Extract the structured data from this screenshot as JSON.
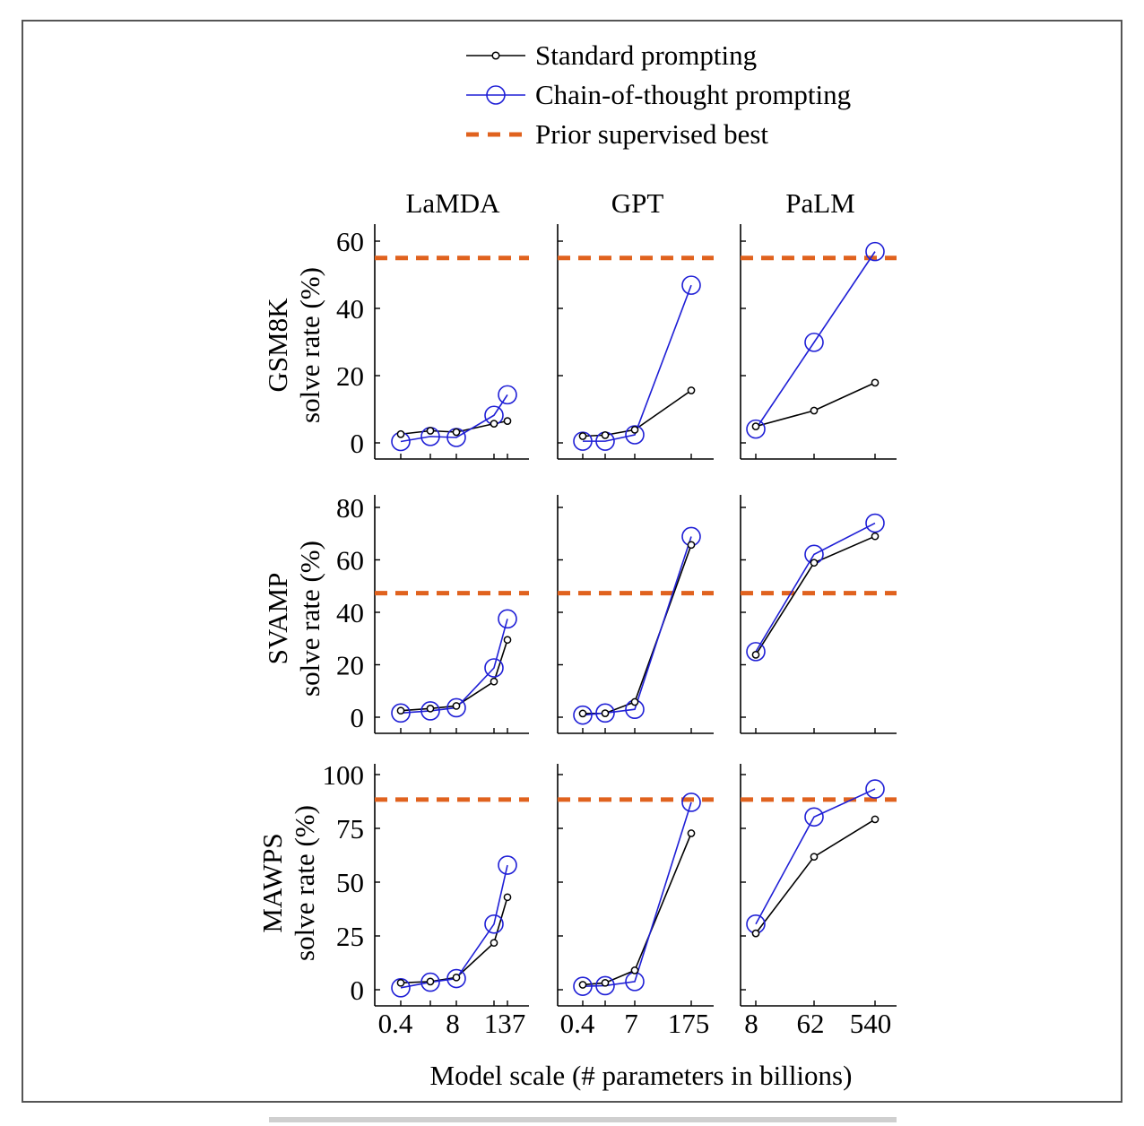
{
  "legend": {
    "items": [
      {
        "label": "Standard prompting",
        "color": "#000000",
        "marker": "small-circle"
      },
      {
        "label": "Chain-of-thought prompting",
        "color": "#1f1fd6",
        "marker": "large-circle"
      },
      {
        "label": "Prior supervised best",
        "color": "#e0621e",
        "marker": "dashed-line"
      }
    ]
  },
  "columns": [
    "LaMDA",
    "GPT",
    "PaLM"
  ],
  "rows": [
    {
      "dataset": "GSM8K",
      "ylabel": "solve rate (%)"
    },
    {
      "dataset": "SVAMP",
      "ylabel": "solve rate (%)"
    },
    {
      "dataset": "MAWPS",
      "ylabel": "solve rate (%)"
    }
  ],
  "xlabel": "Model scale (# parameters in billions)",
  "x_ticks": {
    "LaMDA": [
      "0.4",
      "8",
      "137"
    ],
    "GPT": [
      "0.4",
      "7",
      "175"
    ],
    "PaLM": [
      "8",
      "62",
      "540"
    ]
  },
  "chart_data": [
    {
      "type": "line",
      "row": "GSM8K",
      "column": "LaMDA",
      "ylim": [
        0,
        65
      ],
      "yticks": [
        0,
        20,
        40,
        60
      ],
      "x": [
        0.4,
        2,
        8,
        68,
        137
      ],
      "series": [
        {
          "name": "Standard prompting",
          "values": [
            2.6,
            3.6,
            3.2,
            5.7,
            6.5
          ]
        },
        {
          "name": "Chain-of-thought prompting",
          "values": [
            0.4,
            1.9,
            1.6,
            8.2,
            14.3
          ]
        }
      ],
      "prior_best": 55
    },
    {
      "type": "line",
      "row": "GSM8K",
      "column": "GPT",
      "ylim": [
        0,
        65
      ],
      "yticks": [
        0,
        20,
        40,
        60
      ],
      "x": [
        0.4,
        1.3,
        7,
        175
      ],
      "series": [
        {
          "name": "Standard prompting",
          "values": [
            2.0,
            2.3,
            3.9,
            15.6
          ]
        },
        {
          "name": "Chain-of-thought prompting",
          "values": [
            0.5,
            0.5,
            2.4,
            46.9
          ]
        }
      ],
      "prior_best": 55
    },
    {
      "type": "line",
      "row": "GSM8K",
      "column": "PaLM",
      "ylim": [
        0,
        65
      ],
      "yticks": [
        0,
        20,
        40,
        60
      ],
      "x": [
        8,
        62,
        540
      ],
      "series": [
        {
          "name": "Standard prompting",
          "values": [
            4.9,
            9.6,
            17.9
          ]
        },
        {
          "name": "Chain-of-thought prompting",
          "values": [
            4.1,
            29.9,
            56.9
          ]
        }
      ],
      "prior_best": 55
    },
    {
      "type": "line",
      "row": "SVAMP",
      "column": "LaMDA",
      "ylim": [
        0,
        85
      ],
      "yticks": [
        0,
        20,
        40,
        60,
        80
      ],
      "x": [
        0.4,
        2,
        8,
        68,
        137
      ],
      "series": [
        {
          "name": "Standard prompting",
          "values": [
            2.5,
            3.3,
            4.3,
            13.6,
            29.5
          ]
        },
        {
          "name": "Chain-of-thought prompting",
          "values": [
            1.6,
            2.4,
            3.6,
            18.8,
            37.5
          ]
        }
      ],
      "prior_best": 47.3
    },
    {
      "type": "line",
      "row": "SVAMP",
      "column": "GPT",
      "ylim": [
        0,
        85
      ],
      "yticks": [
        0,
        20,
        40,
        60,
        80
      ],
      "x": [
        0.4,
        1.3,
        7,
        175
      ],
      "series": [
        {
          "name": "Standard prompting",
          "values": [
            1.4,
            1.5,
            5.8,
            65.7
          ]
        },
        {
          "name": "Chain-of-thought prompting",
          "values": [
            0.8,
            1.6,
            3.0,
            68.9
          ]
        }
      ],
      "prior_best": 47.3
    },
    {
      "type": "line",
      "row": "SVAMP",
      "column": "PaLM",
      "ylim": [
        0,
        85
      ],
      "yticks": [
        0,
        20,
        40,
        60,
        80
      ],
      "x": [
        8,
        62,
        540
      ],
      "series": [
        {
          "name": "Standard prompting",
          "values": [
            23.8,
            58.9,
            69.0
          ]
        },
        {
          "name": "Chain-of-thought prompting",
          "values": [
            25.0,
            62.1,
            74.0
          ]
        }
      ],
      "prior_best": 47.3
    },
    {
      "type": "line",
      "row": "MAWPS",
      "column": "LaMDA",
      "ylim": [
        0,
        100
      ],
      "yticks": [
        0,
        25,
        50,
        75,
        100
      ],
      "x": [
        0.4,
        2,
        8,
        68,
        137
      ],
      "series": [
        {
          "name": "Standard prompting",
          "values": [
            3.2,
            3.8,
            5.7,
            21.8,
            43.0
          ]
        },
        {
          "name": "Chain-of-thought prompting",
          "values": [
            0.9,
            3.5,
            5.2,
            30.5,
            57.9
          ]
        }
      ],
      "prior_best": 88.4
    },
    {
      "type": "line",
      "row": "MAWPS",
      "column": "GPT",
      "ylim": [
        0,
        100
      ],
      "yticks": [
        0,
        25,
        50,
        75,
        100
      ],
      "x": [
        0.4,
        1.3,
        7,
        175
      ],
      "series": [
        {
          "name": "Standard prompting",
          "values": [
            2.3,
            3.2,
            9.0,
            72.7
          ]
        },
        {
          "name": "Chain-of-thought prompting",
          "values": [
            1.6,
            1.9,
            3.8,
            87.1
          ]
        }
      ],
      "prior_best": 88.4
    },
    {
      "type": "line",
      "row": "MAWPS",
      "column": "PaLM",
      "ylim": [
        0,
        100
      ],
      "yticks": [
        0,
        25,
        50,
        75,
        100
      ],
      "x": [
        8,
        62,
        540
      ],
      "series": [
        {
          "name": "Standard prompting",
          "values": [
            26.2,
            61.8,
            79.2
          ]
        },
        {
          "name": "Chain-of-thought prompting",
          "values": [
            30.5,
            80.3,
            93.3
          ]
        }
      ],
      "prior_best": 88.4
    }
  ]
}
